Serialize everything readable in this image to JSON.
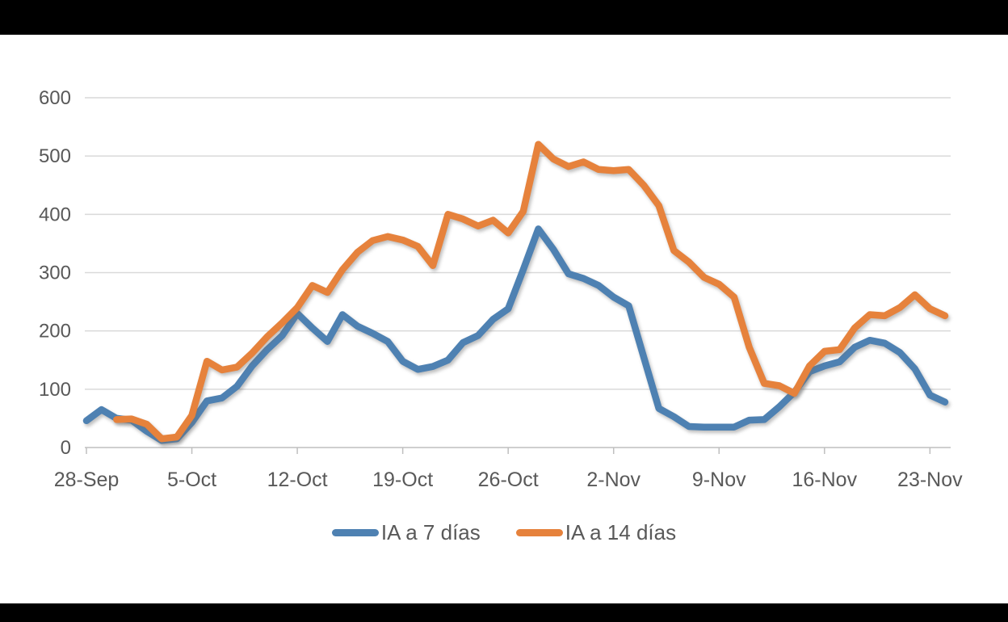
{
  "chart_data": {
    "type": "line",
    "title": "",
    "xlabel": "",
    "ylabel": "",
    "ylim": [
      0,
      600
    ],
    "y_ticks": [
      0,
      100,
      200,
      300,
      400,
      500,
      600
    ],
    "grid": true,
    "legend_position": "bottom",
    "x_ticks": [
      {
        "index": 0,
        "label": "28-Sep"
      },
      {
        "index": 7,
        "label": "5-Oct"
      },
      {
        "index": 14,
        "label": "12-Oct"
      },
      {
        "index": 21,
        "label": "19-Oct"
      },
      {
        "index": 28,
        "label": "26-Oct"
      },
      {
        "index": 35,
        "label": "2-Nov"
      },
      {
        "index": 42,
        "label": "9-Nov"
      },
      {
        "index": 49,
        "label": "16-Nov"
      },
      {
        "index": 56,
        "label": "23-Nov"
      }
    ],
    "dates": [
      "28-Sep",
      "29-Sep",
      "30-Sep",
      "1-Oct",
      "2-Oct",
      "3-Oct",
      "4-Oct",
      "5-Oct",
      "6-Oct",
      "7-Oct",
      "8-Oct",
      "9-Oct",
      "10-Oct",
      "11-Oct",
      "12-Oct",
      "13-Oct",
      "14-Oct",
      "15-Oct",
      "16-Oct",
      "17-Oct",
      "18-Oct",
      "19-Oct",
      "20-Oct",
      "21-Oct",
      "22-Oct",
      "23-Oct",
      "24-Oct",
      "25-Oct",
      "26-Oct",
      "27-Oct",
      "28-Oct",
      "29-Oct",
      "30-Oct",
      "31-Oct",
      "1-Nov",
      "2-Nov",
      "3-Nov",
      "4-Nov",
      "5-Nov",
      "6-Nov",
      "7-Nov",
      "8-Nov",
      "9-Nov",
      "10-Nov",
      "11-Nov",
      "12-Nov",
      "13-Nov",
      "14-Nov",
      "15-Nov",
      "16-Nov",
      "17-Nov",
      "18-Nov",
      "19-Nov",
      "20-Nov",
      "21-Nov",
      "22-Nov",
      "23-Nov",
      "24-Nov"
    ],
    "series": [
      {
        "name": "IA a 7 días",
        "color": "#4e81b2",
        "values": [
          46,
          65,
          50,
          47,
          28,
          12,
          15,
          43,
          80,
          85,
          105,
          140,
          168,
          192,
          230,
          205,
          182,
          228,
          208,
          196,
          182,
          148,
          134,
          139,
          150,
          180,
          192,
          220,
          238,
          305,
          375,
          340,
          298,
          290,
          278,
          258,
          243,
          155,
          67,
          53,
          36,
          35,
          35,
          35,
          47,
          48,
          70,
          95,
          130,
          140,
          147,
          172,
          184,
          179,
          163,
          135,
          90,
          78
        ]
      },
      {
        "name": "IA a 14 días",
        "color": "#e6823c",
        "values": [
          null,
          null,
          48,
          49,
          40,
          15,
          18,
          55,
          148,
          133,
          138,
          162,
          190,
          214,
          240,
          278,
          266,
          305,
          335,
          355,
          362,
          356,
          345,
          312,
          400,
          392,
          380,
          390,
          368,
          405,
          520,
          495,
          482,
          490,
          477,
          475,
          477,
          450,
          415,
          338,
          318,
          292,
          280,
          258,
          172,
          110,
          106,
          93,
          140,
          165,
          168,
          205,
          228,
          226,
          240,
          262,
          238,
          226
        ]
      }
    ]
  }
}
